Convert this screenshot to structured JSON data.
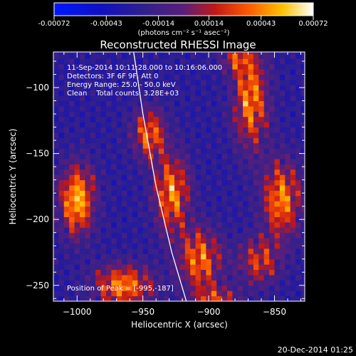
{
  "chart_data": {
    "type": "heatmap",
    "title": "Reconstructed RHESSI Image",
    "xlabel": "Heliocentric X (arcsec)",
    "ylabel": "Heliocentric Y (arcsec)",
    "xlim": [
      -1018,
      -827
    ],
    "ylim": [
      -262,
      -73
    ],
    "x_ticks": [
      -1000,
      -950,
      -900,
      -850
    ],
    "y_ticks": [
      -250,
      -200,
      -150,
      -100
    ],
    "colorbar": {
      "ticks": [
        -0.00072,
        -0.00043,
        -0.00014,
        0.00014,
        0.00043,
        0.00072
      ],
      "tick_labels": [
        "-0.00072",
        "-0.00043",
        "-0.00014",
        "0.00014",
        "0.00043",
        "0.00072"
      ],
      "units_label": "(photons cm⁻² s⁻¹ asec⁻²)",
      "range": [
        -0.00072,
        0.00072
      ]
    },
    "info_lines": [
      "11-Sep-2014 10:11:28.000 to 10:16:06.000",
      "Detectors: 3F 6F 9F, Att 0",
      "Energy Range: 25.0 - 50.0 keV",
      "Clean    Total counts: 3.28E+03"
    ],
    "peak_label": "Position of Peak = [-995,-187]",
    "peak_position": [
      -995,
      -187
    ],
    "limb_curve": [
      [
        -957,
        -73
      ],
      [
        -950,
        -120
      ],
      [
        -940,
        -175
      ],
      [
        -928,
        -225
      ],
      [
        -917,
        -262
      ]
    ],
    "sources": [
      {
        "x": -1000,
        "y": -185,
        "sx": 9,
        "sy": 18,
        "amp": 1.0
      },
      {
        "x": -965,
        "y": -250,
        "sx": 15,
        "sy": 11,
        "amp": 0.85
      },
      {
        "x": -945,
        "y": -135,
        "sx": 9,
        "sy": 13,
        "amp": 0.75
      },
      {
        "x": -928,
        "y": -180,
        "sx": 9,
        "sy": 20,
        "amp": 0.85
      },
      {
        "x": -907,
        "y": -230,
        "sx": 11,
        "sy": 16,
        "amp": 0.8
      },
      {
        "x": -895,
        "y": -262,
        "sx": 12,
        "sy": 8,
        "amp": 0.6
      },
      {
        "x": -868,
        "y": -108,
        "sx": 9,
        "sy": 26,
        "amp": 0.85
      },
      {
        "x": -880,
        "y": -78,
        "sx": 8,
        "sy": 7,
        "amp": 0.5
      },
      {
        "x": -845,
        "y": -185,
        "sx": 10,
        "sy": 20,
        "amp": 0.85
      },
      {
        "x": -862,
        "y": -232,
        "sx": 11,
        "sy": 12,
        "amp": 0.6
      }
    ]
  },
  "footer": {
    "timestamp": "20-Dec-2014 01:25"
  },
  "colors": {
    "background": "#000000",
    "text": "#ffffff",
    "colormap": [
      "#0000ff",
      "#1010c0",
      "#3a2a8a",
      "#5a2a86",
      "#c01818",
      "#ff5a00",
      "#ffc000",
      "#ffffff"
    ]
  }
}
